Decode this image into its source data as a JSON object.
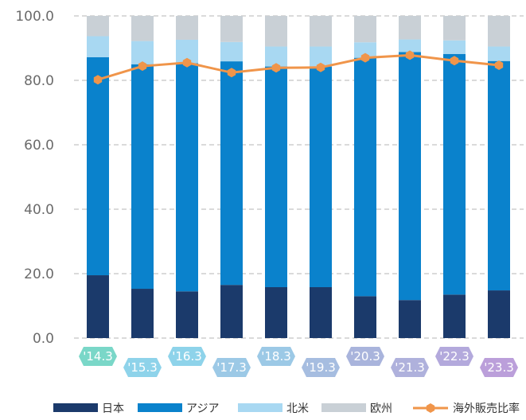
{
  "chart_data": {
    "type": "bar",
    "stacked": true,
    "categories": [
      "'14.3",
      "'15.3",
      "'16.3",
      "'17.3",
      "'18.3",
      "'19.3",
      "'20.3",
      "'21.3",
      "'22.3",
      "'23.3"
    ],
    "ylim": [
      0,
      100
    ],
    "yticks": [
      "0.0",
      "20.0",
      "40.0",
      "60.0",
      "80.0",
      "100.0"
    ],
    "grid": true,
    "legend_position": "bottom",
    "series": [
      {
        "name": "日本",
        "color": "#1b3a6b",
        "values": [
          19.5,
          15.3,
          14.5,
          16.5,
          15.8,
          15.8,
          13.0,
          11.8,
          13.5,
          14.8
        ]
      },
      {
        "name": "アジア",
        "color": "#0a82cc",
        "values": [
          67.7,
          69.7,
          70.8,
          69.4,
          68.5,
          68.5,
          74.0,
          77.0,
          74.7,
          71.2
        ]
      },
      {
        "name": "北米",
        "color": "#a8d8f2",
        "values": [
          6.5,
          7.2,
          7.3,
          6.0,
          6.2,
          6.2,
          4.8,
          3.9,
          4.2,
          4.5
        ]
      },
      {
        "name": "欧州",
        "color": "#c9d0d6",
        "values": [
          6.3,
          7.8,
          7.4,
          8.1,
          9.5,
          9.5,
          8.2,
          7.3,
          7.6,
          9.5
        ]
      }
    ],
    "line_series": {
      "name": "海外販売比率",
      "color": "#f0954a",
      "values": [
        80.2,
        84.4,
        85.5,
        82.4,
        83.9,
        84.0,
        87.0,
        87.8,
        86.1,
        84.7
      ]
    },
    "label_colors": [
      "#7ad7c8",
      "#8ed3ea",
      "#8ed3ea",
      "#9cc9e6",
      "#9cc9e6",
      "#a6bde0",
      "#a9b4dc",
      "#afb1dc",
      "#b3a9dc",
      "#bb9fda"
    ]
  }
}
